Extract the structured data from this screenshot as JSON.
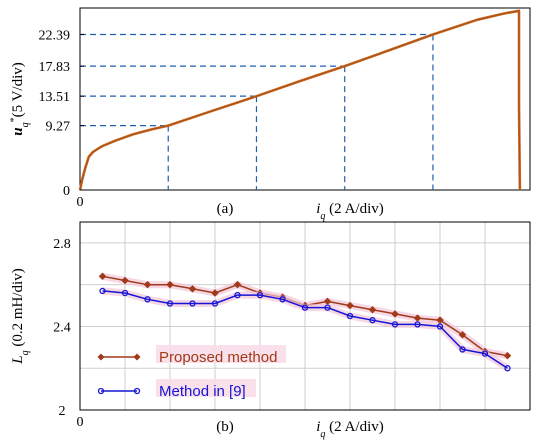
{
  "chart_data": [
    {
      "panel": "(a)",
      "type": "line",
      "ylabel": "u_q^* (5 V/div)",
      "xlabel": "i_q (2 A/div)",
      "yticks": [
        "0",
        "9.27",
        "13.51",
        "17.83",
        "22.39"
      ],
      "xticks": [
        "0"
      ],
      "ytick_values": [
        0,
        9.27,
        13.51,
        17.83,
        22.39
      ],
      "guide_points": [
        {
          "x": 2.0,
          "y": 9.27
        },
        {
          "x": 4.0,
          "y": 13.51
        },
        {
          "x": 6.0,
          "y": 17.83
        },
        {
          "x": 8.0,
          "y": 22.39
        }
      ],
      "curve": {
        "x": [
          0,
          0.05,
          0.12,
          0.2,
          0.3,
          0.5,
          0.8,
          1.2,
          1.6,
          2.0,
          3.0,
          4.0,
          5.0,
          6.0,
          7.0,
          8.0,
          9.0,
          9.6,
          9.95,
          9.95,
          9.97
        ],
        "y": [
          0,
          1.5,
          3.2,
          4.8,
          5.5,
          6.3,
          7.1,
          8.0,
          8.7,
          9.27,
          11.4,
          13.51,
          15.7,
          17.83,
          20.1,
          22.39,
          24.5,
          25.4,
          25.8,
          12.0,
          0
        ]
      },
      "xlim": [
        0,
        10.2
      ],
      "ylim": [
        0,
        26.2
      ],
      "color": "#c8641e",
      "guide_color": "#1f5fb0"
    },
    {
      "panel": "(b)",
      "type": "line",
      "ylabel": "L_q (0.2 mH/div)",
      "xlabel": "i_q (2 A/div)",
      "yticks": [
        "2",
        "2.4",
        "2.8"
      ],
      "xticks": [
        "0"
      ],
      "ytick_values": [
        2.0,
        2.4,
        2.8
      ],
      "x": [
        0.5,
        1.0,
        1.5,
        2.0,
        2.5,
        3.0,
        3.5,
        4.0,
        4.5,
        5.0,
        5.5,
        6.0,
        6.5,
        7.0,
        7.5,
        8.0,
        8.5,
        9.0,
        9.5
      ],
      "series": [
        {
          "name": "Proposed method",
          "values": [
            2.64,
            2.62,
            2.6,
            2.6,
            2.58,
            2.56,
            2.6,
            2.56,
            2.54,
            2.5,
            2.52,
            2.5,
            2.48,
            2.46,
            2.44,
            2.43,
            2.36,
            2.28,
            2.26
          ],
          "color": "#a23a1a",
          "marker": "diamond"
        },
        {
          "name": "Method in [9]",
          "values": [
            2.57,
            2.56,
            2.53,
            2.51,
            2.51,
            2.51,
            2.55,
            2.55,
            2.53,
            2.49,
            2.49,
            2.45,
            2.43,
            2.41,
            2.41,
            2.4,
            2.29,
            2.27,
            2.2
          ],
          "color": "#1515d6",
          "marker": "circle"
        }
      ],
      "xlim": [
        0,
        10
      ],
      "ylim": [
        2.0,
        2.9
      ],
      "grid": true,
      "legend": "lower-left"
    }
  ],
  "captions": [
    "(a)",
    "(b)"
  ]
}
